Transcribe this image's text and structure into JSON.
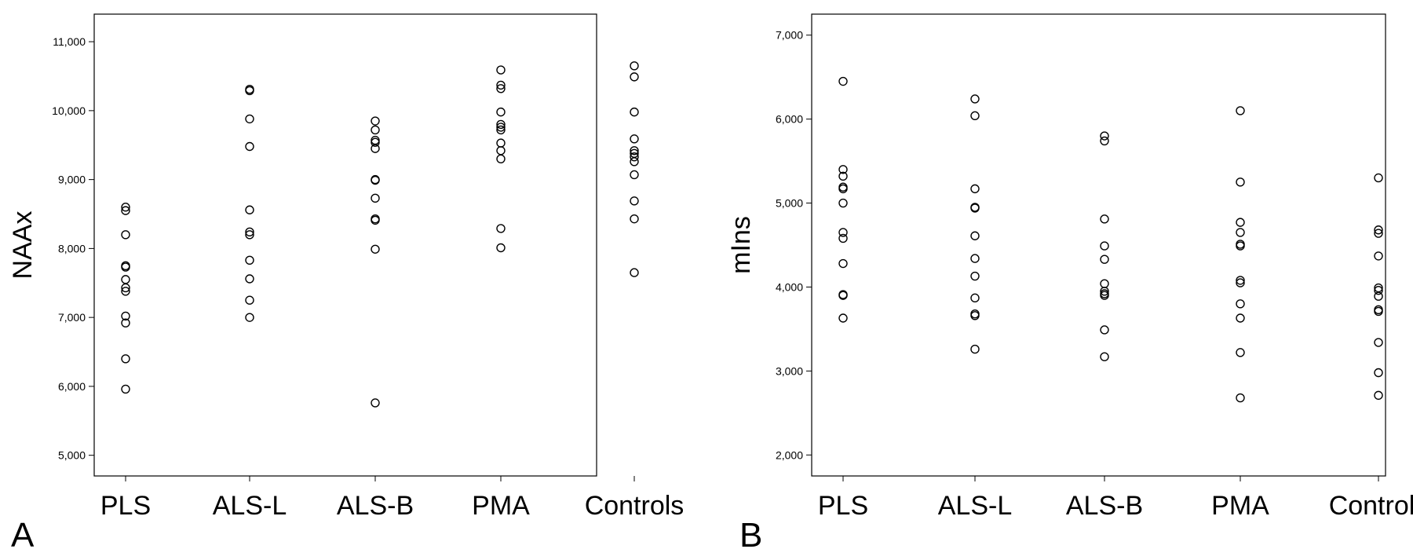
{
  "chart_data": [
    {
      "panel_label": "A",
      "type": "scatter",
      "categories": [
        "PLS",
        "ALS-L",
        "ALS-B",
        "PMA",
        "Controls"
      ],
      "ylabel": "NAAx",
      "ylim": [
        4700,
        11400
      ],
      "yticks": [
        5000,
        6000,
        7000,
        8000,
        9000,
        10000,
        11000
      ],
      "ytick_labels": [
        "5,000",
        "6,000",
        "7,000",
        "8,000",
        "9,000",
        "10,000",
        "11,000"
      ],
      "series": [
        {
          "values": [
            [
              8600,
              8550,
              8200,
              7750,
              7730,
              7550,
              7430,
              7380,
              7020,
              6920,
              6400,
              5960
            ],
            [
              10310,
              10290,
              9880,
              9480,
              8560,
              8240,
              8200,
              7830,
              7560,
              7250,
              7000
            ],
            [
              9850,
              9720,
              9570,
              9540,
              9450,
              9000,
              8990,
              8730,
              8430,
              8410,
              7990,
              5760
            ],
            [
              10590,
              10370,
              10320,
              9980,
              9800,
              9760,
              9720,
              9530,
              9420,
              9300,
              8290,
              8010
            ],
            [
              10650,
              10490,
              9980,
              9590,
              9420,
              9380,
              9330,
              9260,
              9070,
              8690,
              8430,
              7650
            ]
          ]
        }
      ],
      "grid": false,
      "marker": "open-circle"
    },
    {
      "panel_label": "B",
      "type": "scatter",
      "categories": [
        "PLS",
        "ALS-L",
        "ALS-B",
        "PMA",
        "Controls"
      ],
      "ylabel": "mIns",
      "ylim": [
        1750,
        7250
      ],
      "yticks": [
        2000,
        3000,
        4000,
        5000,
        6000,
        7000
      ],
      "ytick_labels": [
        "2,000",
        "3,000",
        "4,000",
        "5,000",
        "6,000",
        "7,000"
      ],
      "series": [
        {
          "values": [
            [
              6450,
              5400,
              5320,
              5190,
              5170,
              5000,
              4650,
              4580,
              4280,
              3910,
              3900,
              3630
            ],
            [
              6240,
              6040,
              5170,
              4950,
              4940,
              4610,
              4340,
              4130,
              3870,
              3680,
              3660,
              3260
            ],
            [
              5800,
              5740,
              4810,
              4490,
              4330,
              4040,
              3950,
              3920,
              3900,
              3490,
              3170
            ],
            [
              6100,
              5250,
              4770,
              4650,
              4510,
              4490,
              4080,
              4050,
              3800,
              3630,
              3220,
              2680
            ],
            [
              5300,
              4680,
              4640,
              4370,
              3990,
              3960,
              3890,
              3730,
              3710,
              3340,
              2980,
              2710
            ]
          ]
        }
      ],
      "grid": false,
      "marker": "open-circle"
    }
  ]
}
